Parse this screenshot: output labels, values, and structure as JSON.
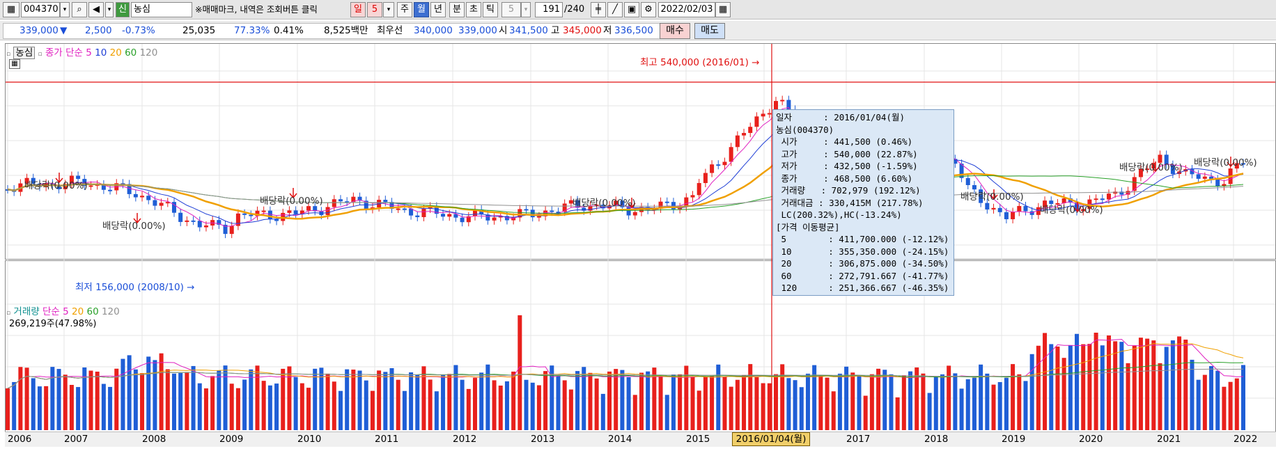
{
  "toolbar": {
    "code": "004370",
    "stock_badge": "신",
    "stock_name": "농심",
    "hint": "※매매마크, 내역은 조회버튼 클릭",
    "period_day": "일",
    "period_value": "5",
    "period_week": "주",
    "period_month": "월",
    "period_year": "년",
    "period_minute": "분",
    "period_second": "초",
    "period_tick": "틱",
    "interval_value": "5",
    "count_value": "191",
    "count_total": "/240",
    "date": "2022/02/03"
  },
  "quote": {
    "price": "339,000",
    "arrow": "▼",
    "change": "2,500",
    "change_pct": "-0.73%",
    "volume": "25,035",
    "vol_pct1": "77.33%",
    "vol_pct2": "0.41%",
    "amount": "8,525백만",
    "best_label": "최우선",
    "best_ask": "340,000",
    "best_bid": "339,000",
    "open_label": "시",
    "open": "341,500",
    "high_label": "고",
    "high": "345,000",
    "low_label": "저",
    "low": "336,500",
    "buy_btn": "매수",
    "sell_btn": "매도"
  },
  "price_legend": {
    "name": "농심",
    "type": "종가 단순",
    "ma": [
      "5",
      "10",
      "20",
      "60",
      "120"
    ]
  },
  "volume_legend": {
    "name": "거래량",
    "type": "단순",
    "ma": [
      "5",
      "20",
      "60",
      "120"
    ],
    "current": "269,219주(47.98%)"
  },
  "annotations": {
    "high": "최고 540,000 (2016/01) →",
    "low": "최저 156,000 (2008/10) →",
    "div": "배당락(0.00%)"
  },
  "tooltip": {
    "rows": [
      "일자      : 2016/01/04(월)",
      "농심(004370)",
      " 시가     : 441,500 (0.46%)",
      " 고가     : 540,000 (22.87%)",
      " 저가     : 432,500 (-1.59%)",
      " 종가     : 468,500 (6.60%)",
      " 거래량   : 702,979 (192.12%)",
      " 거래대금 : 330,415M (217.78%)",
      " LC(200.32%),HC(-13.24%)",
      "[가격 이동평균]",
      " 5        : 411,700.000 (-12.12%)",
      " 10       : 355,350.000 (-24.15%)",
      " 20       : 306,875.000 (-34.50%)",
      " 60       : 272,791.667 (-41.77%)",
      " 120      : 251,366.667 (-46.35%)"
    ]
  },
  "xaxis": {
    "labels": [
      "2006",
      "2007",
      "2008",
      "2009",
      "2010",
      "2011",
      "2012",
      "2013",
      "2014",
      "2015",
      "2017",
      "2018",
      "2019",
      "2020",
      "2021",
      "2022"
    ],
    "crosshair": "2016/01/04(월)"
  },
  "colors": {
    "up": "#e8201c",
    "down": "#1f5ed6",
    "ma5": "#e020c0",
    "ma10": "#1f3fd6",
    "ma20": "#f0a000",
    "ma60": "#28a028",
    "ma120": "#909090"
  },
  "chart_data": {
    "type": "candlestick",
    "timeframe": "monthly",
    "x_range": [
      "2006/01",
      "2022/02"
    ],
    "price_high": {
      "date": "2016/01",
      "value": 540000
    },
    "price_low": {
      "date": "2008/10",
      "value": 156000
    },
    "highlight": {
      "date": "2016/01/04",
      "open": 441500,
      "high": 540000,
      "low": 432500,
      "close": 468500,
      "volume": 702979,
      "amount_m": 330415,
      "ma5": 411700,
      "ma10": 355350,
      "ma20": 306875,
      "ma60": 272791.667,
      "ma120": 251366.667
    },
    "last": {
      "close": 339000,
      "open": 341500,
      "high": 345000,
      "low": 336500,
      "volume": 25035
    }
  }
}
